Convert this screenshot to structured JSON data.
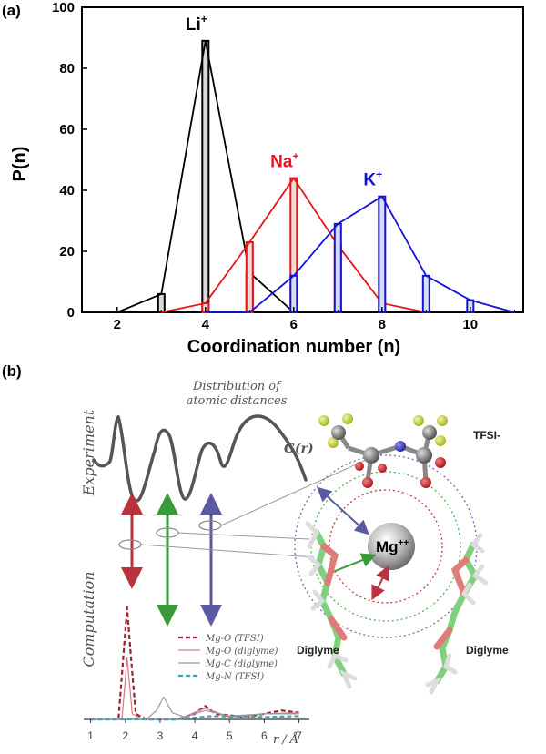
{
  "panel_a": {
    "label": "(a)",
    "chart_data": {
      "type": "bar",
      "title": "",
      "xlabel": "Coordination number (n)",
      "ylabel": "P(n)",
      "xlim": [
        1.2,
        11.2
      ],
      "ylim": [
        0,
        100
      ],
      "xticks": [
        "2",
        "4",
        "6",
        "8",
        "10"
      ],
      "yticks": [
        "0",
        "20",
        "40",
        "60",
        "80",
        "100"
      ],
      "series": [
        {
          "name": "Li",
          "charge": "+",
          "color": "#000000",
          "bar_fill": "#d9d9d9",
          "x": [
            2,
            3,
            4,
            5,
            6
          ],
          "values": [
            0,
            6,
            89,
            13,
            0
          ]
        },
        {
          "name": "Na",
          "charge": "+",
          "color": "#e8141b",
          "bar_fill": "#f4d9d9",
          "x": [
            3,
            4,
            5,
            6,
            7,
            8,
            9
          ],
          "values": [
            0,
            3,
            23,
            44,
            22,
            3,
            0
          ]
        },
        {
          "name": "K",
          "charge": "+",
          "color": "#1414d8",
          "bar_fill": "#d9def2",
          "x": [
            4,
            5,
            6,
            7,
            8,
            9,
            10,
            11
          ],
          "values": [
            0,
            0,
            12,
            29,
            38,
            12,
            4,
            0
          ]
        }
      ]
    }
  },
  "panel_b": {
    "label": "(b)",
    "caption_line1": "Distribution of",
    "caption_line2": "atomic distances",
    "gr_label": "G(r)",
    "experiment_label": "Experiment",
    "computation_label": "Computation",
    "molecule": {
      "tfsi_label": "TFSI-",
      "mg_label": "Mg",
      "mg_charge": "++",
      "diglyme_left": "Diglyme",
      "diglyme_right": "Diglyme"
    },
    "chart_data": {
      "type": "line",
      "xlabel": "r / Å",
      "xlim": [
        0.8,
        7.3
      ],
      "xticks": [
        "1",
        "2",
        "3",
        "4",
        "5",
        "6",
        "7"
      ],
      "series": [
        {
          "name": "Mg-O (TFSI)",
          "color": "#9b2335",
          "style": "dashed",
          "x": [
            1.0,
            1.8,
            1.95,
            2.05,
            2.15,
            2.3,
            2.6,
            3.5,
            4.0,
            4.3,
            4.6,
            5.5,
            6.5,
            7.0
          ],
          "y": [
            0.0,
            0.0,
            0.6,
            1.0,
            0.6,
            0.05,
            0.0,
            0.0,
            0.05,
            0.12,
            0.05,
            0.02,
            0.08,
            0.06
          ]
        },
        {
          "name": "Mg-O (diglyme)",
          "color": "#d47a8a",
          "style": "solid",
          "x": [
            1.0,
            1.9,
            2.05,
            2.2,
            2.5,
            3.5,
            4.3,
            5.0,
            6.0,
            7.0
          ],
          "y": [
            0.0,
            0.0,
            0.55,
            0.05,
            0.0,
            0.0,
            0.1,
            0.02,
            0.05,
            0.06
          ]
        },
        {
          "name": "Mg-C (diglyme)",
          "color": "#9a9a9a",
          "style": "solid",
          "x": [
            1.0,
            2.6,
            2.9,
            3.1,
            3.35,
            3.7,
            4.3,
            5.0,
            6.0,
            7.0
          ],
          "y": [
            0.0,
            0.0,
            0.08,
            0.2,
            0.06,
            0.02,
            0.08,
            0.03,
            0.05,
            0.05
          ]
        },
        {
          "name": "Mg-N (TFSI)",
          "color": "#3aa6b0",
          "style": "dashed",
          "x": [
            1.0,
            3.5,
            4.5,
            6.0,
            7.0
          ],
          "y": [
            0.0,
            0.0,
            0.03,
            0.02,
            0.03
          ]
        }
      ]
    }
  }
}
